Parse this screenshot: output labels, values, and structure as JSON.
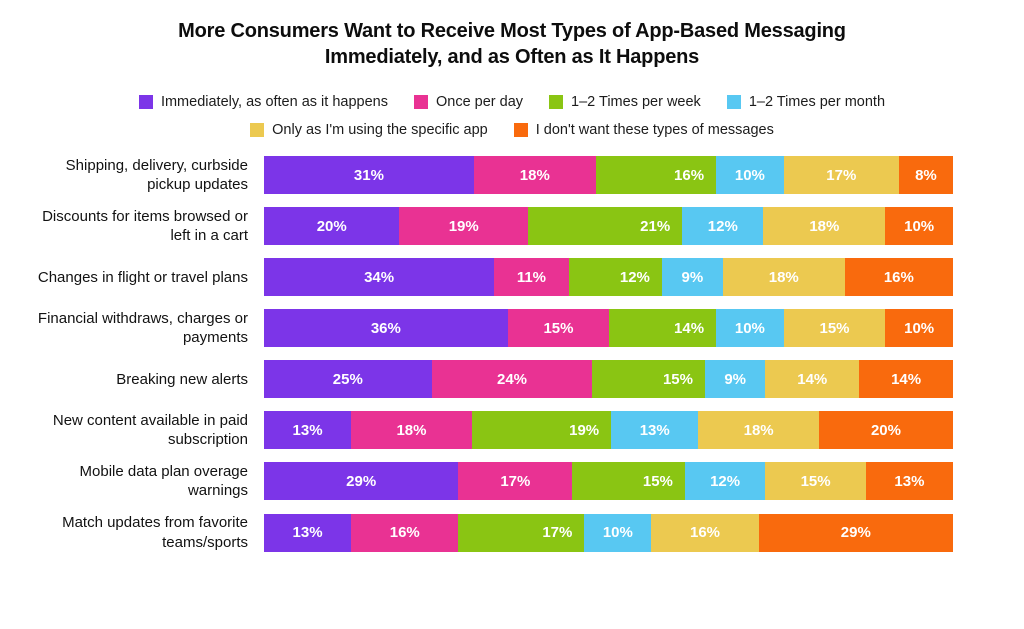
{
  "header": {
    "title_line1": "More Consumers Want to Receive Most Types of App-Based Messaging",
    "title_line2": "Immediately, and as Often as It Happens"
  },
  "chart_data": {
    "type": "bar",
    "orientation": "horizontal",
    "stacked": true,
    "unit": "%",
    "value_range": [
      0,
      100
    ],
    "title": "More Consumers Want to Receive Most Types of App-Based Messaging Immediately, and as Often as It Happens",
    "legend_position": "top",
    "right_aligned_value_series": 2,
    "categories": [
      "Shipping, delivery, curbside pickup updates",
      "Discounts for items browsed or left in a cart",
      "Changes in flight or travel plans",
      "Financial withdraws, charges or payments",
      "Breaking new alerts",
      "New content available in paid subscription",
      "Mobile data plan overage warnings",
      "Match updates from favorite teams/sports"
    ],
    "series": [
      {
        "name": "Immediately, as often as it happens",
        "color": "#7c35e8",
        "values": [
          31,
          20,
          34,
          36,
          25,
          13,
          29,
          13
        ]
      },
      {
        "name": "Once per day",
        "color": "#e93293",
        "values": [
          18,
          19,
          11,
          15,
          24,
          18,
          17,
          16
        ]
      },
      {
        "name": "1–2 Times per week",
        "color": "#8ac513",
        "values": [
          16,
          21,
          12,
          14,
          15,
          19,
          15,
          17
        ]
      },
      {
        "name": "1–2 Times per month",
        "color": "#58c8f2",
        "values": [
          10,
          12,
          9,
          10,
          9,
          13,
          12,
          10
        ]
      },
      {
        "name": "Only as I'm using the specific app",
        "color": "#ecc950",
        "values": [
          17,
          18,
          18,
          15,
          14,
          18,
          15,
          16
        ]
      },
      {
        "name": "I don't want these types of messages",
        "color": "#f96a0d",
        "values": [
          8,
          10,
          16,
          10,
          14,
          20,
          13,
          29
        ]
      }
    ]
  }
}
